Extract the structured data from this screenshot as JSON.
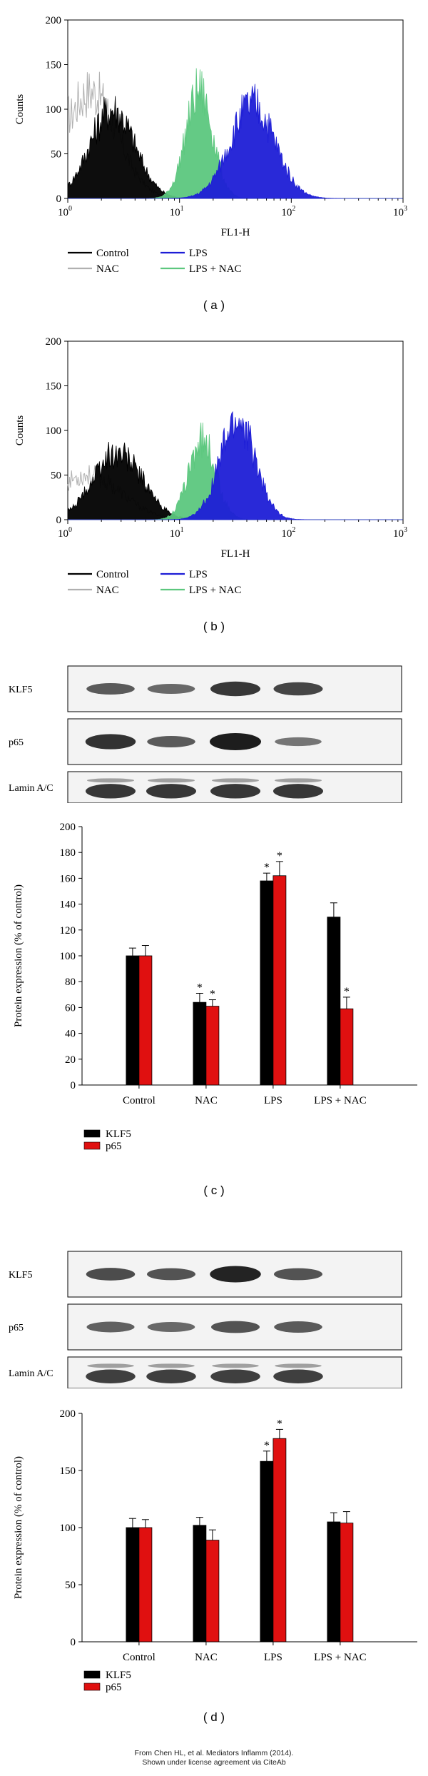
{
  "captions": {
    "a": "( a )",
    "b": "( b )",
    "c": "( c )",
    "d": "( d )"
  },
  "blots": {
    "c": [
      "KLF5",
      "p65",
      "Lamin A/C"
    ],
    "d": [
      "KLF5",
      "p65",
      "Lamin A/C"
    ]
  },
  "credit": {
    "line1": "From Chen HL, et al. Mediators Inflamm (2014).",
    "line2": "Shown under license agreement via CiteAb"
  },
  "colors": {
    "control": "#000000",
    "nac": "#b0b0b0",
    "lps": "#1d1dd6",
    "lps_nac": "#5cc77e",
    "klf5": "#000000",
    "p65": "#e01010"
  },
  "chart_data": [
    {
      "id": "a",
      "type": "area",
      "xlabel": "FL1-H",
      "ylabel": "Counts",
      "xscale": "log",
      "xlim": [
        1,
        1000
      ],
      "ylim": [
        0,
        200
      ],
      "xticks": [
        "10^0",
        "10^1",
        "10^2",
        "10^3"
      ],
      "yticks": [
        0,
        50,
        100,
        150,
        200
      ],
      "legend": [
        "Control",
        "NAC",
        "LPS",
        "LPS + NAC"
      ],
      "series": [
        {
          "name": "Control",
          "peak_x": 2.5,
          "peak_y": 100,
          "width": 0.2
        },
        {
          "name": "NAC",
          "peak_x": 1.6,
          "peak_y": 120,
          "width": 0.24
        },
        {
          "name": "LPS",
          "peak_x": 45,
          "peak_y": 105,
          "width": 0.2
        },
        {
          "name": "LPS + NAC",
          "peak_x": 15,
          "peak_y": 120,
          "width": 0.12
        }
      ]
    },
    {
      "id": "b",
      "type": "area",
      "xlabel": "FL1-H",
      "ylabel": "Counts",
      "xscale": "log",
      "xlim": [
        1,
        1000
      ],
      "ylim": [
        0,
        200
      ],
      "xticks": [
        "10^0",
        "10^1",
        "10^2",
        "10^3"
      ],
      "yticks": [
        0,
        50,
        100,
        150,
        200
      ],
      "legend": [
        "Control",
        "NAC",
        "LPS",
        "LPS + NAC"
      ],
      "series": [
        {
          "name": "Control",
          "peak_x": 2.8,
          "peak_y": 75,
          "width": 0.22
        },
        {
          "name": "NAC",
          "peak_x": 1.5,
          "peak_y": 50,
          "width": 0.3
        },
        {
          "name": "LPS",
          "peak_x": 33,
          "peak_y": 110,
          "width": 0.16
        },
        {
          "name": "LPS + NAC",
          "peak_x": 16,
          "peak_y": 90,
          "width": 0.12
        }
      ]
    },
    {
      "id": "c",
      "type": "bar",
      "ylabel": "Protein expression (% of control)",
      "ylim": [
        0,
        200
      ],
      "yticks": [
        0,
        20,
        40,
        60,
        80,
        100,
        120,
        140,
        160,
        180,
        200
      ],
      "categories": [
        "Control",
        "NAC",
        "LPS",
        "LPS + NAC"
      ],
      "legend": [
        "KLF5",
        "p65"
      ],
      "series": [
        {
          "name": "KLF5",
          "values": [
            100,
            64,
            158,
            130
          ],
          "errors": [
            6,
            7,
            6,
            11
          ],
          "significant": [
            false,
            true,
            true,
            false
          ]
        },
        {
          "name": "p65",
          "values": [
            100,
            61,
            162,
            59
          ],
          "errors": [
            8,
            5,
            11,
            9
          ],
          "significant": [
            false,
            true,
            true,
            true
          ]
        }
      ]
    },
    {
      "id": "d",
      "type": "bar",
      "ylabel": "Protein expression (% of control)",
      "ylim": [
        0,
        200
      ],
      "yticks": [
        0,
        50,
        100,
        150,
        200
      ],
      "categories": [
        "Control",
        "NAC",
        "LPS",
        "LPS + NAC"
      ],
      "legend": [
        "KLF5",
        "p65"
      ],
      "series": [
        {
          "name": "KLF5",
          "values": [
            100,
            102,
            158,
            105
          ],
          "errors": [
            8,
            7,
            9,
            8
          ],
          "significant": [
            false,
            false,
            true,
            false
          ]
        },
        {
          "name": "p65",
          "values": [
            100,
            89,
            178,
            104
          ],
          "errors": [
            7,
            9,
            8,
            10
          ],
          "significant": [
            false,
            false,
            true,
            false
          ]
        }
      ]
    }
  ]
}
